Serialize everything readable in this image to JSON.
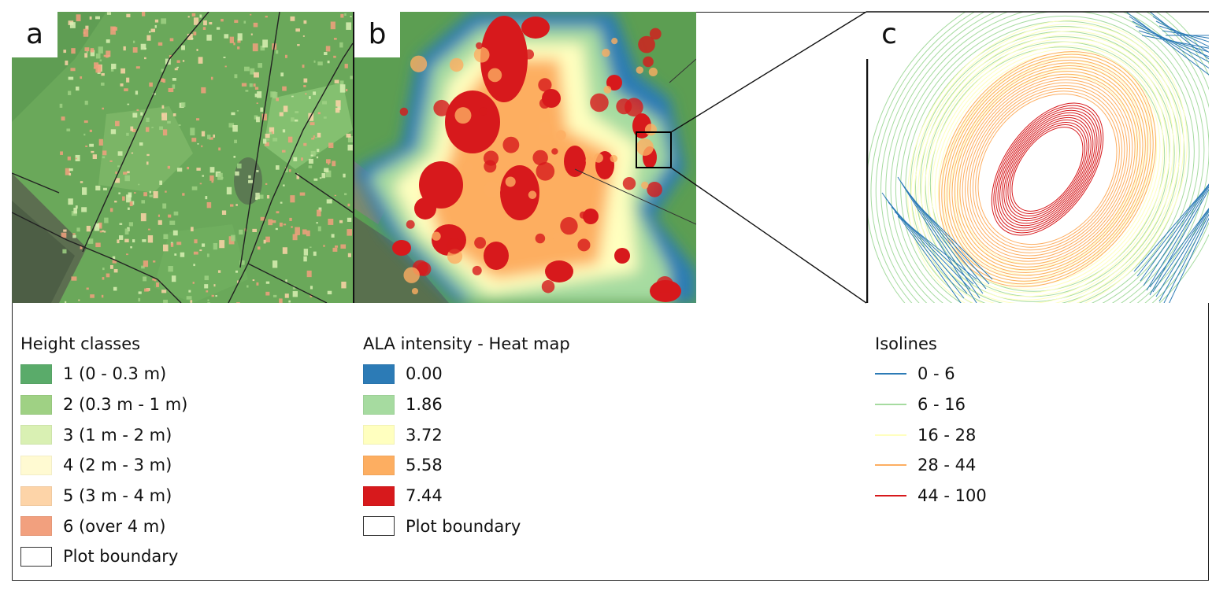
{
  "panels": {
    "a": {
      "letter": "a"
    },
    "b": {
      "letter": "b"
    },
    "c": {
      "letter": "c"
    }
  },
  "legend_height": {
    "title": "Height classes",
    "items": [
      {
        "label": "1 (0 - 0.3 m)",
        "color": "#5aab6a"
      },
      {
        "label": "2 (0.3 m - 1 m)",
        "color": "#9fd184"
      },
      {
        "label": "3 (1 m - 2 m)",
        "color": "#d9f0b3"
      },
      {
        "label": "4 (2 m - 3 m)",
        "color": "#fffad2"
      },
      {
        "label": "5 (3 m - 4 m)",
        "color": "#fdd4a8"
      },
      {
        "label": "6 (over 4 m)",
        "color": "#f2a07e"
      },
      {
        "label": "Plot boundary",
        "color": "#ffffff"
      }
    ]
  },
  "legend_heat": {
    "title": "ALA intensity - Heat map",
    "items": [
      {
        "label": "0.00",
        "color": "#2c7bb6"
      },
      {
        "label": "1.86",
        "color": "#a6dba0"
      },
      {
        "label": "3.72",
        "color": "#ffffbf"
      },
      {
        "label": "5.58",
        "color": "#fdae61"
      },
      {
        "label": "7.44",
        "color": "#d7191c"
      },
      {
        "label": "Plot boundary",
        "color": "#ffffff"
      }
    ]
  },
  "legend_isolines": {
    "title": "Isolines",
    "items": [
      {
        "label": "0 - 6",
        "color": "#2c7bb6"
      },
      {
        "label": "6 - 16",
        "color": "#a6dba0"
      },
      {
        "label": "16 - 28",
        "color": "#ffffbf"
      },
      {
        "label": "28 - 44",
        "color": "#fdae61"
      },
      {
        "label": "44 - 100",
        "color": "#d7191c"
      }
    ]
  }
}
